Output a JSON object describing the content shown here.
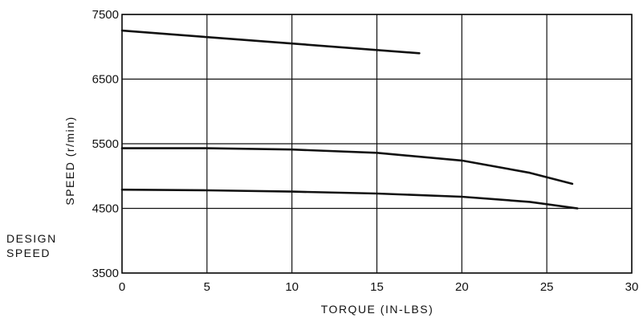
{
  "chart_data": {
    "type": "line",
    "xlabel": "TORQUE (IN-LBS)",
    "ylabel": "SPEED (r/min)",
    "xlim": [
      0,
      30
    ],
    "ylim": [
      3500,
      7500
    ],
    "x_ticks": [
      "0",
      "5",
      "10",
      "15",
      "20",
      "25",
      "30"
    ],
    "y_ticks": [
      "7500",
      "6500",
      "5500",
      "4500",
      "3500"
    ],
    "y_tick_values": [
      7500,
      6500,
      5500,
      4500,
      3500
    ],
    "grid": true,
    "series": [
      {
        "x": [
          0,
          5,
          10,
          15,
          17.5
        ],
        "y": [
          7250,
          7150,
          7050,
          6950,
          6900
        ]
      },
      {
        "x": [
          0,
          5,
          10,
          15,
          20,
          24,
          26.5
        ],
        "y": [
          5430,
          5430,
          5410,
          5360,
          5240,
          5050,
          4880
        ]
      },
      {
        "x": [
          0,
          5,
          10,
          15,
          20,
          24,
          26.8
        ],
        "y": [
          4790,
          4780,
          4760,
          4730,
          4680,
          4600,
          4500
        ]
      }
    ],
    "annotations": [
      {
        "text": "DESIGN SPEED",
        "lines": [
          "DESIGN",
          "SPEED"
        ]
      }
    ],
    "line_color": "#111111"
  }
}
